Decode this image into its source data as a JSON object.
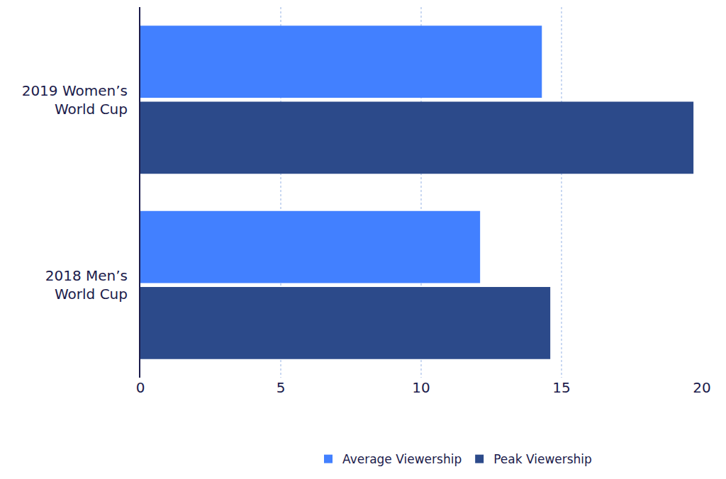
{
  "chart_data": {
    "type": "bar",
    "orientation": "horizontal",
    "categories": [
      "2019 Women’s World Cup",
      "2018 Men’s World Cup"
    ],
    "series": [
      {
        "name": "Average Viewership",
        "color": "#4280ff",
        "values": [
          14.3,
          12.1
        ]
      },
      {
        "name": "Peak Viewership",
        "color": "#2c4a8a",
        "values": [
          19.7,
          14.6
        ]
      }
    ],
    "xlim": [
      0,
      20
    ],
    "xticks": [
      0,
      5,
      10,
      15,
      20
    ],
    "grid": true,
    "legend": "bottom"
  }
}
